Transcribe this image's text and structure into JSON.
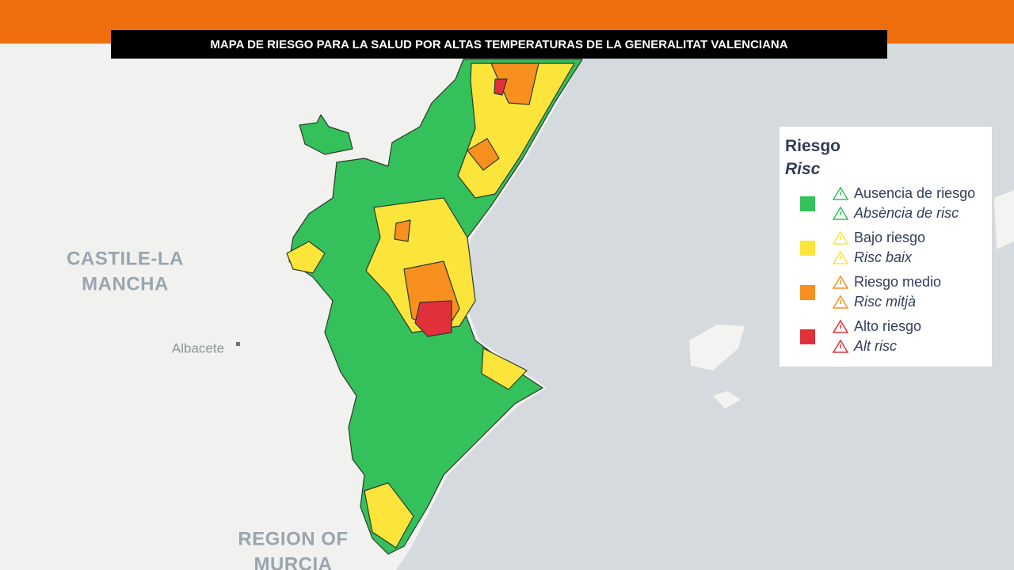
{
  "header": {
    "title": "MAPA DE RIESGO PARA LA SALUD POR ALTAS TEMPERATURAS DE LA GENERALITAT VALENCIANA"
  },
  "map": {
    "labels": [
      [
        "CASTILE-LA",
        "MANCHA"
      ],
      [
        "Albacete"
      ],
      [
        "REGION OF",
        "MURCIA"
      ]
    ]
  },
  "legend": {
    "title": "Riesgo",
    "subtitle": "Risc",
    "items": [
      {
        "label": "Ausencia de riesgo",
        "label_va": "Absència de risc",
        "color": "#34c05a"
      },
      {
        "label": "Bajo riesgo",
        "label_va": "Risc baix",
        "color": "#fbe53a"
      },
      {
        "label": "Riesgo medio",
        "label_va": "Risc mitjà",
        "color": "#f7901e"
      },
      {
        "label": "Alto riesgo",
        "label_va": "Alt risc",
        "color": "#e0303a"
      }
    ]
  }
}
